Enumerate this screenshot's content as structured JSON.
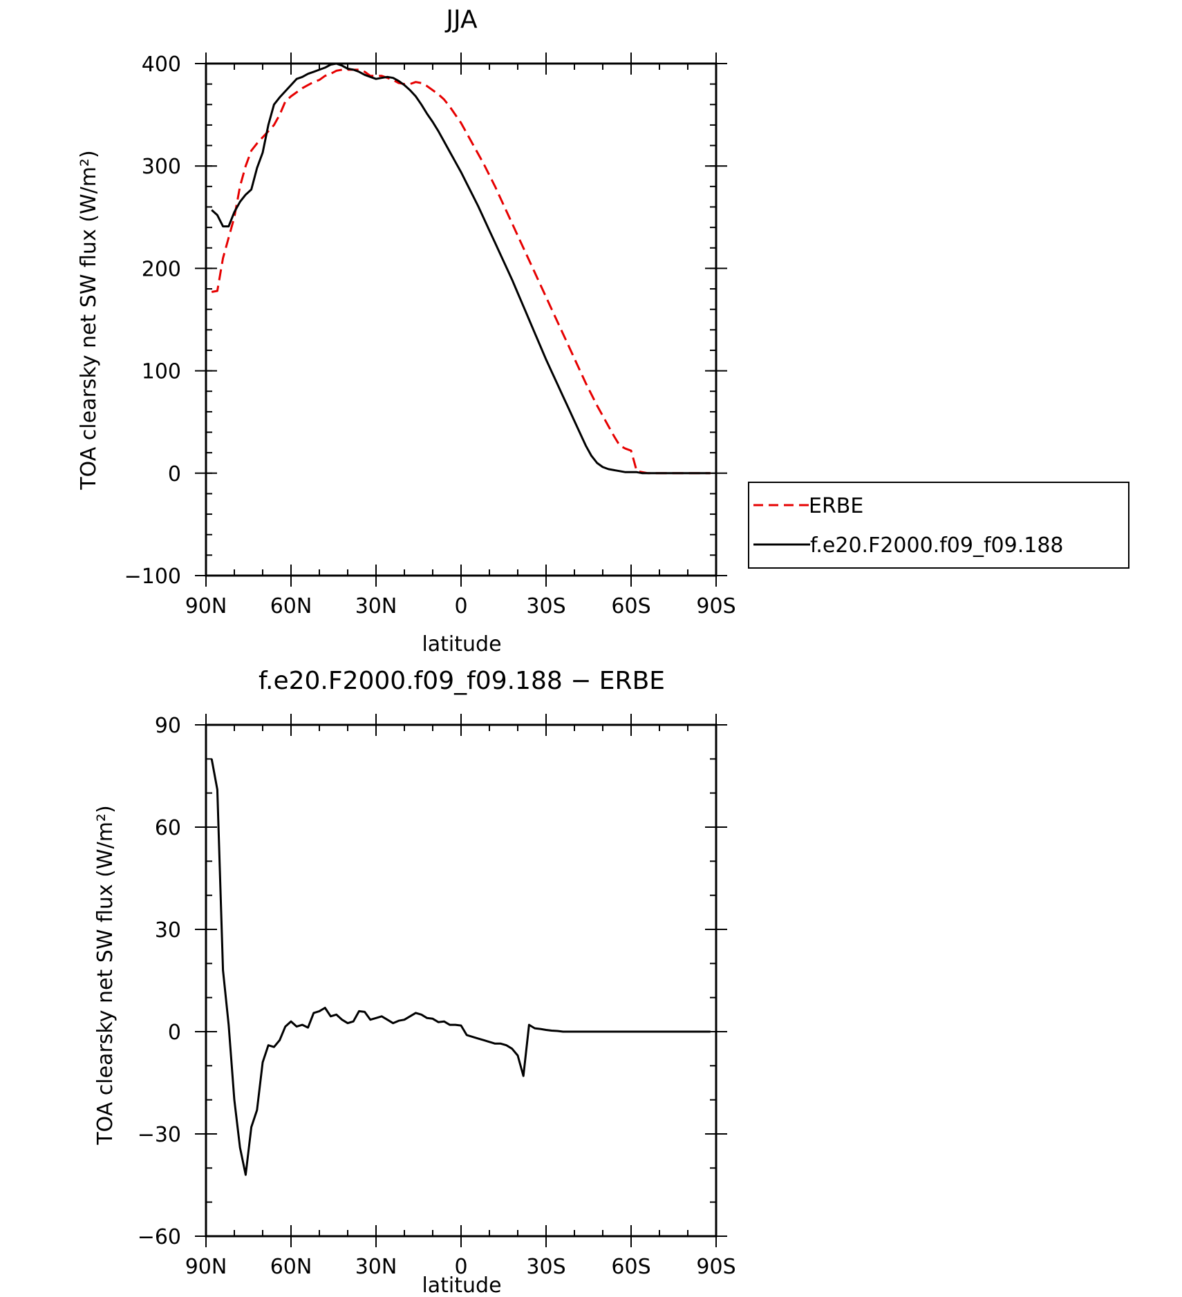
{
  "chart_data": [
    {
      "type": "line",
      "title": "JJA",
      "xlabel": "latitude",
      "ylabel": "TOA clearsky net SW flux (W/m²)",
      "xlim": [
        90,
        -90
      ],
      "ylim": [
        -100,
        400
      ],
      "x_ticks": [
        {
          "value": 90,
          "label": "90N"
        },
        {
          "value": 60,
          "label": "60N"
        },
        {
          "value": 30,
          "label": "30N"
        },
        {
          "value": 0,
          "label": "0"
        },
        {
          "value": -30,
          "label": "30S"
        },
        {
          "value": -60,
          "label": "60S"
        },
        {
          "value": -90,
          "label": "90S"
        }
      ],
      "y_ticks": [
        {
          "value": 400,
          "label": "400"
        },
        {
          "value": 300,
          "label": "300"
        },
        {
          "value": 200,
          "label": "200"
        },
        {
          "value": 100,
          "label": "100"
        },
        {
          "value": 0,
          "label": "0"
        },
        {
          "value": -100,
          "label": "−100"
        }
      ],
      "legend_position": "right",
      "series": [
        {
          "name": "ERBE",
          "color": "#e60000",
          "dash": "dashed",
          "x": [
            88,
            86,
            84,
            82,
            80,
            78,
            76,
            74,
            72,
            70,
            68,
            66,
            64,
            62,
            60,
            58,
            56,
            54,
            52,
            50,
            48,
            46,
            44,
            42,
            40,
            38,
            36,
            34,
            32,
            30,
            28,
            26,
            24,
            22,
            20,
            18,
            16,
            14,
            12,
            10,
            8,
            6,
            4,
            2,
            0,
            -2,
            -4,
            -6,
            -8,
            -10,
            -12,
            -14,
            -16,
            -18,
            -20,
            -22,
            -24,
            -26,
            -28,
            -30,
            -32,
            -34,
            -36,
            -38,
            -40,
            -42,
            -44,
            -46,
            -48,
            -50,
            -52,
            -54,
            -56,
            -58,
            -60,
            -62,
            -64,
            -66,
            -68,
            -70,
            -72,
            -74,
            -76,
            -78,
            -80,
            -82,
            -84,
            -86,
            -88
          ],
          "y": [
            177,
            178,
            210,
            230,
            250,
            280,
            300,
            315,
            322,
            328,
            334,
            340,
            350,
            363,
            368,
            372,
            376,
            379,
            382,
            384,
            388,
            390,
            393,
            394,
            394,
            394,
            394,
            392,
            388,
            388,
            388,
            386,
            384,
            381,
            380,
            380,
            382,
            381,
            378,
            374,
            370,
            365,
            358,
            350,
            342,
            332,
            322,
            312,
            302,
            291,
            280,
            268,
            256,
            244,
            232,
            220,
            208,
            196,
            184,
            172,
            160,
            148,
            136,
            124,
            112,
            100,
            88,
            77,
            66,
            56,
            46,
            36,
            27,
            24,
            22,
            2,
            1,
            0,
            0,
            0,
            0,
            0,
            0,
            0,
            0,
            0,
            0,
            0,
            0
          ]
        },
        {
          "name": "f.e20.F2000.f09_f09.188",
          "color": "#000000",
          "dash": "solid",
          "x": [
            88,
            86,
            84,
            82,
            80,
            78,
            76,
            74,
            72,
            70,
            68,
            66,
            64,
            62,
            60,
            58,
            56,
            54,
            52,
            50,
            48,
            46,
            44,
            42,
            40,
            38,
            36,
            34,
            32,
            30,
            28,
            26,
            24,
            22,
            20,
            18,
            16,
            14,
            12,
            10,
            8,
            6,
            4,
            2,
            0,
            -2,
            -4,
            -6,
            -8,
            -10,
            -12,
            -14,
            -16,
            -18,
            -20,
            -22,
            -24,
            -26,
            -28,
            -30,
            -32,
            -34,
            -36,
            -38,
            -40,
            -42,
            -44,
            -46,
            -48,
            -50,
            -52,
            -54,
            -56,
            -58,
            -60,
            -62,
            -64,
            -66,
            -68,
            -70,
            -72,
            -74,
            -76,
            -78,
            -80,
            -82,
            -84,
            -86,
            -88
          ],
          "y": [
            257,
            252,
            241,
            241,
            255,
            265,
            272,
            277,
            298,
            313,
            340,
            360,
            367,
            373,
            379,
            385,
            387,
            390,
            392,
            394,
            396,
            399,
            400,
            398,
            395,
            394,
            392,
            389,
            387,
            385,
            386,
            387,
            386,
            383,
            379,
            374,
            368,
            360,
            351,
            343,
            334,
            324,
            314,
            304,
            294,
            283,
            272,
            261,
            249,
            237,
            225,
            213,
            201,
            189,
            176,
            163,
            150,
            137,
            124,
            111,
            99,
            87,
            75,
            63,
            51,
            39,
            27,
            17,
            10,
            6,
            4,
            3,
            2,
            1,
            1,
            1,
            0,
            0,
            0,
            0,
            0,
            0,
            0,
            0,
            0,
            0,
            0,
            0,
            0
          ]
        }
      ]
    },
    {
      "type": "line",
      "title": "f.e20.F2000.f09_f09.188 − ERBE",
      "xlabel": "latitude",
      "ylabel": "TOA clearsky net SW flux (W/m²)",
      "xlim": [
        90,
        -90
      ],
      "ylim": [
        -60,
        90
      ],
      "x_ticks": [
        {
          "value": 90,
          "label": "90N"
        },
        {
          "value": 60,
          "label": "60N"
        },
        {
          "value": 30,
          "label": "30N"
        },
        {
          "value": 0,
          "label": "0"
        },
        {
          "value": -30,
          "label": "30S"
        },
        {
          "value": -60,
          "label": "60S"
        },
        {
          "value": -90,
          "label": "90S"
        }
      ],
      "y_ticks": [
        {
          "value": 90,
          "label": "90"
        },
        {
          "value": 60,
          "label": "60"
        },
        {
          "value": 30,
          "label": "30"
        },
        {
          "value": 0,
          "label": "0"
        },
        {
          "value": -30,
          "label": "−30"
        },
        {
          "value": -60,
          "label": "−60"
        }
      ],
      "series": [
        {
          "color": "#000000",
          "dash": "solid",
          "x": [
            88,
            86,
            84,
            82,
            80,
            78,
            76,
            74,
            72,
            70,
            68,
            66,
            64,
            62,
            60,
            58,
            56,
            54,
            52,
            50,
            48,
            46,
            44,
            42,
            40,
            38,
            36,
            34,
            32,
            30,
            28,
            26,
            24,
            22,
            20,
            18,
            16,
            14,
            12,
            10,
            8,
            6,
            4,
            2,
            0,
            -2,
            -4,
            -6,
            -8,
            -10,
            -12,
            -14,
            -16,
            -18,
            -20,
            -22,
            -24,
            -26,
            -28,
            -30,
            -32,
            -34,
            -36,
            -38,
            -40,
            -42,
            -44,
            -46,
            -48,
            -50,
            -52,
            -54,
            -56,
            -58,
            -60,
            -62,
            -64,
            -66,
            -68,
            -70,
            -72,
            -74,
            -76,
            -78,
            -80,
            -82,
            -84,
            -86,
            -88
          ],
          "y": [
            80,
            71,
            18,
            2,
            -20,
            -34,
            -42,
            -28,
            -23,
            -9,
            -4,
            -4.5,
            -2.5,
            1.5,
            3,
            1.5,
            2,
            1.2,
            5.5,
            6,
            7,
            4.5,
            5,
            3.5,
            2.5,
            3,
            6,
            5.8,
            3.5,
            4,
            4.5,
            3.5,
            2.5,
            3.2,
            3.5,
            4.5,
            5.5,
            5,
            4,
            3.8,
            2.8,
            3,
            2,
            2,
            1.8,
            -1,
            -1.5,
            -2,
            -2.5,
            -3,
            -3.5,
            -3.5,
            -4,
            -5,
            -7,
            -13,
            2,
            1,
            0.8,
            0.5,
            0.3,
            0.2,
            0,
            0,
            0,
            0,
            0,
            0,
            0,
            0,
            0,
            0,
            0,
            0,
            0,
            0,
            0,
            0,
            0,
            0,
            0,
            0,
            0,
            0,
            0,
            0,
            0,
            0,
            0
          ]
        }
      ]
    }
  ]
}
